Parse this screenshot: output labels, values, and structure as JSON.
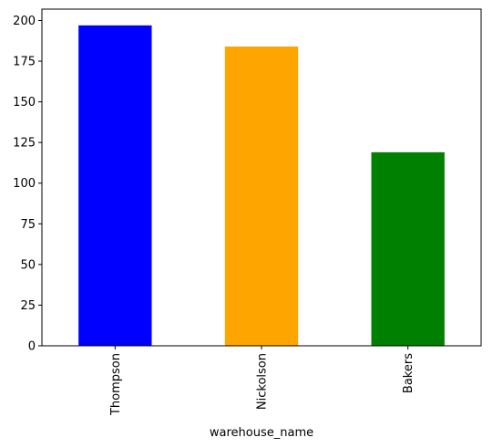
{
  "chart_data": {
    "type": "bar",
    "categories": [
      "Thompson",
      "Nickolson",
      "Bakers"
    ],
    "values": [
      197,
      184,
      119
    ],
    "colors": [
      "#0000ff",
      "#ffa500",
      "#008000"
    ],
    "title": "",
    "xlabel": "warehouse_name",
    "ylabel": "",
    "ylim": [
      0,
      207
    ],
    "yticks": [
      0,
      25,
      50,
      75,
      100,
      125,
      150,
      175,
      200
    ],
    "grid": false,
    "legend": "none"
  }
}
